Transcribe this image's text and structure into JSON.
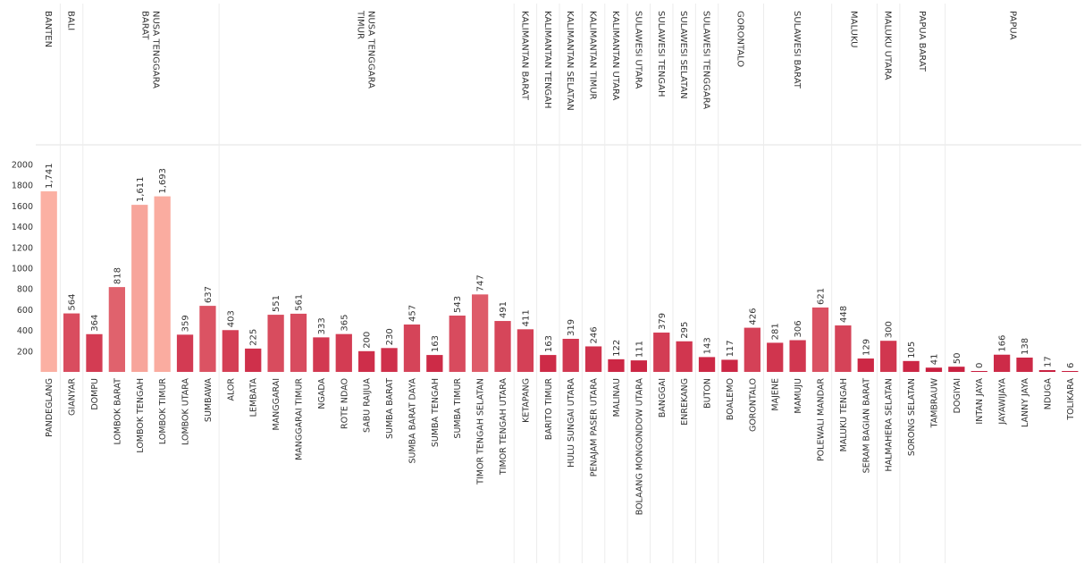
{
  "chart_data": {
    "type": "bar",
    "title": "",
    "xlabel": "",
    "ylabel": "",
    "ylim": [
      0,
      2000
    ],
    "yticks": [
      200,
      400,
      600,
      800,
      1000,
      1200,
      1400,
      1600,
      1800,
      2000
    ],
    "grid": false,
    "color_scale": {
      "low": "#c81d3e",
      "high": "#fbb0a3"
    },
    "groups": [
      {
        "name": "BANTEN",
        "categories": [
          "PANDEGLANG"
        ]
      },
      {
        "name": "BALI",
        "categories": [
          "GIANYAR"
        ]
      },
      {
        "name": "NUSA TENGGARA BARAT",
        "categories": [
          "DOMPU",
          "LOMBOK BARAT",
          "LOMBOK TENGAH",
          "LOMBOK TIMUR",
          "LOMBOK UTARA",
          "SUMBAWA"
        ]
      },
      {
        "name": "NUSA TENGGARA TIMUR",
        "categories": [
          "ALOR",
          "LEMBATA",
          "MANGGARAI",
          "MANGGARAI TIMUR",
          "NGADA",
          "ROTE NDAO",
          "SABU RAIJUA",
          "SUMBA BARAT",
          "SUMBA BARAT DAYA",
          "SUMBA TENGAH",
          "SUMBA TIMUR",
          "TIMOR TENGAH SELATAN",
          "TIMOR TENGAH UTARA"
        ]
      },
      {
        "name": "KALIMANTAN BARAT",
        "categories": [
          "KETAPANG"
        ]
      },
      {
        "name": "KALIMANTAN TENGAH",
        "categories": [
          "BARITO TIMUR"
        ]
      },
      {
        "name": "KALIMANTAN SELATAN",
        "categories": [
          "HULU SUNGAI UTARA"
        ]
      },
      {
        "name": "KALIMANTAN TIMUR",
        "categories": [
          "PENAJAM PASER UTARA"
        ]
      },
      {
        "name": "KALIMANTAN UTARA",
        "categories": [
          "MALINAU"
        ]
      },
      {
        "name": "SULAWESI UTARA",
        "categories": [
          "BOLAANG MONGONDOW UTARA"
        ]
      },
      {
        "name": "SULAWESI TENGAH",
        "categories": [
          "BANGGAI"
        ]
      },
      {
        "name": "SULAWESI SELATAN",
        "categories": [
          "ENREKANG"
        ]
      },
      {
        "name": "SULAWESI TENGGARA",
        "categories": [
          "BUTON"
        ]
      },
      {
        "name": "GORONTALO",
        "categories": [
          "BOALEMO",
          "GORONTALO"
        ]
      },
      {
        "name": "SULAWESI BARAT",
        "categories": [
          "MAJENE",
          "MAMUJU",
          "POLEWALI MANDAR"
        ]
      },
      {
        "name": "MALUKU",
        "categories": [
          "MALUKU TENGAH",
          "SERAM BAGIAN BARAT"
        ]
      },
      {
        "name": "MALUKU UTARA",
        "categories": [
          "HALMAHERA SELATAN"
        ]
      },
      {
        "name": "PAPUA BARAT",
        "categories": [
          "SORONG SELATAN",
          "TAMBRAUW"
        ]
      },
      {
        "name": "PAPUA",
        "categories": [
          "DOGIYAI",
          "INTAN JAYA",
          "JAYAWIJAYA",
          "LANNY JAYA",
          "NDUGA",
          "TOLIKARA"
        ]
      }
    ],
    "categories": [
      "PANDEGLANG",
      "GIANYAR",
      "DOMPU",
      "LOMBOK BARAT",
      "LOMBOK TENGAH",
      "LOMBOK TIMUR",
      "LOMBOK UTARA",
      "SUMBAWA",
      "ALOR",
      "LEMBATA",
      "MANGGARAI",
      "MANGGARAI TIMUR",
      "NGADA",
      "ROTE NDAO",
      "SABU RAIJUA",
      "SUMBA BARAT",
      "SUMBA BARAT DAYA",
      "SUMBA TENGAH",
      "SUMBA TIMUR",
      "TIMOR TENGAH SELATAN",
      "TIMOR TENGAH UTARA",
      "KETAPANG",
      "BARITO TIMUR",
      "HULU SUNGAI UTARA",
      "PENAJAM PASER UTARA",
      "MALINAU",
      "BOLAANG MONGONDOW UTARA",
      "BANGGAI",
      "ENREKANG",
      "BUTON",
      "BOALEMO",
      "GORONTALO",
      "MAJENE",
      "MAMUJU",
      "POLEWALI MANDAR",
      "MALUKU TENGAH",
      "SERAM BAGIAN BARAT",
      "HALMAHERA SELATAN",
      "SORONG SELATAN",
      "TAMBRAUW",
      "DOGIYAI",
      "INTAN JAYA",
      "JAYAWIJAYA",
      "LANNY JAYA",
      "NDUGA",
      "TOLIKARA"
    ],
    "values": [
      1741,
      564,
      364,
      818,
      1611,
      1693,
      359,
      637,
      403,
      225,
      551,
      561,
      333,
      365,
      200,
      230,
      457,
      163,
      543,
      747,
      491,
      411,
      163,
      319,
      246,
      122,
      111,
      379,
      295,
      143,
      117,
      426,
      281,
      306,
      621,
      448,
      129,
      300,
      105,
      41,
      50,
      0,
      166,
      138,
      17,
      6
    ],
    "value_labels": [
      "1,741",
      "564",
      "364",
      "818",
      "1,611",
      "1,693",
      "359",
      "637",
      "403",
      "225",
      "551",
      "561",
      "333",
      "365",
      "200",
      "230",
      "457",
      "163",
      "543",
      "747",
      "491",
      "411",
      "163",
      "319",
      "246",
      "122",
      "111",
      "379",
      "295",
      "143",
      "117",
      "426",
      "281",
      "306",
      "621",
      "448",
      "129",
      "300",
      "105",
      "41",
      "50",
      "0",
      "166",
      "138",
      "17",
      "6"
    ]
  }
}
